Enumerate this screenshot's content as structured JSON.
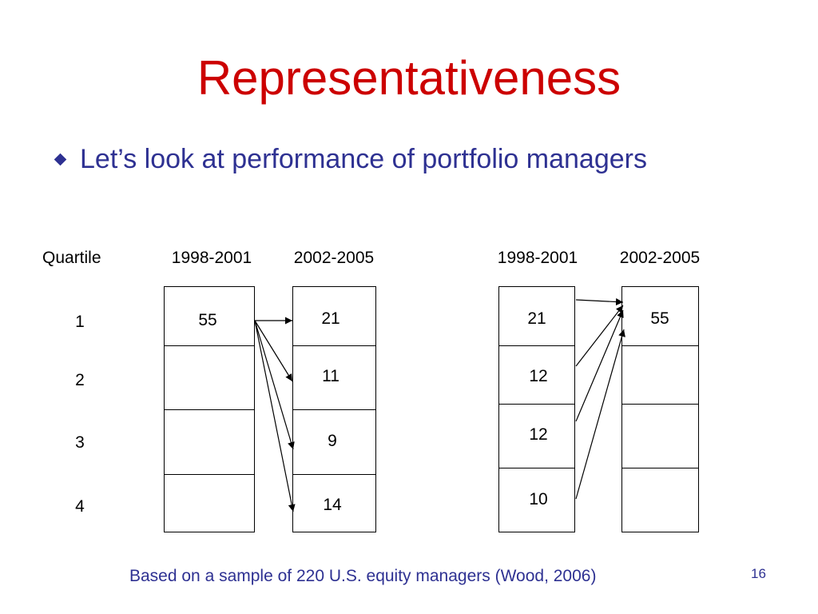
{
  "slide": {
    "title": "Representativeness",
    "bullet": "Let’s look at performance of portfolio managers",
    "footnote": "Based on a sample of 220 U.S. equity managers (Wood, 2006)",
    "slide_number": "16"
  },
  "colors": {
    "title": "#cc0000",
    "body_text": "#2e3192",
    "diagram": "#000000"
  },
  "bullet_icon": "diamond-icon",
  "quartile_header": "Quartile",
  "quartiles": [
    "1",
    "2",
    "3",
    "4"
  ],
  "left_panel": {
    "period_1": "1998-2001",
    "period_2": "2002-2005",
    "period_1_values": [
      "55",
      "",
      "",
      ""
    ],
    "period_2_values": [
      "21",
      "11",
      "9",
      "14"
    ],
    "arrows": "1998-2001 quartile 1 to each 2002-2005 quartile"
  },
  "right_panel": {
    "period_1": "1998-2001",
    "period_2": "2002-2005",
    "period_1_values": [
      "21",
      "12",
      "12",
      "10"
    ],
    "period_2_values": [
      "55",
      "",
      "",
      ""
    ],
    "arrows": "each 1998-2001 quartile to 2002-2005 quartile 1"
  }
}
